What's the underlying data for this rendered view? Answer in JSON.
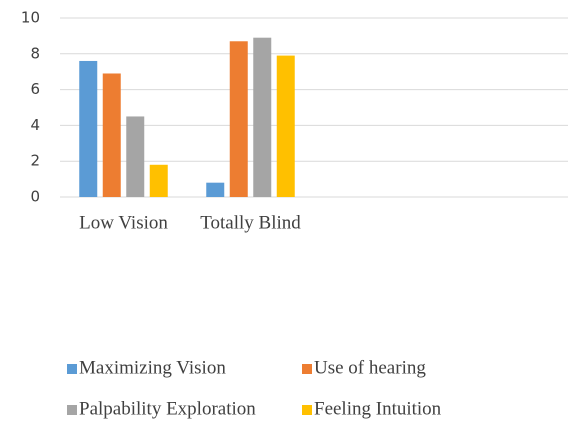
{
  "chart_data": {
    "type": "bar",
    "categories": [
      "Low Vision",
      "Totally Blind",
      null,
      null
    ],
    "series": [
      {
        "name": "Maximizing Vision",
        "color": "#5b9bd5",
        "values": [
          7.6,
          0.8,
          null,
          null
        ]
      },
      {
        "name": "Use of hearing",
        "color": "#ed7d31",
        "values": [
          6.9,
          8.7,
          null,
          null
        ]
      },
      {
        "name": "Palpability Exploration",
        "color": "#a5a5a5",
        "values": [
          4.5,
          8.9,
          null,
          null
        ]
      },
      {
        "name": "Feeling Intuition",
        "color": "#ffc000",
        "values": [
          1.8,
          7.9,
          null,
          null
        ]
      }
    ],
    "ylim": [
      0,
      10
    ],
    "yticks": [
      0,
      2,
      4,
      6,
      8,
      10
    ],
    "grid": true,
    "legend": "bottom"
  }
}
